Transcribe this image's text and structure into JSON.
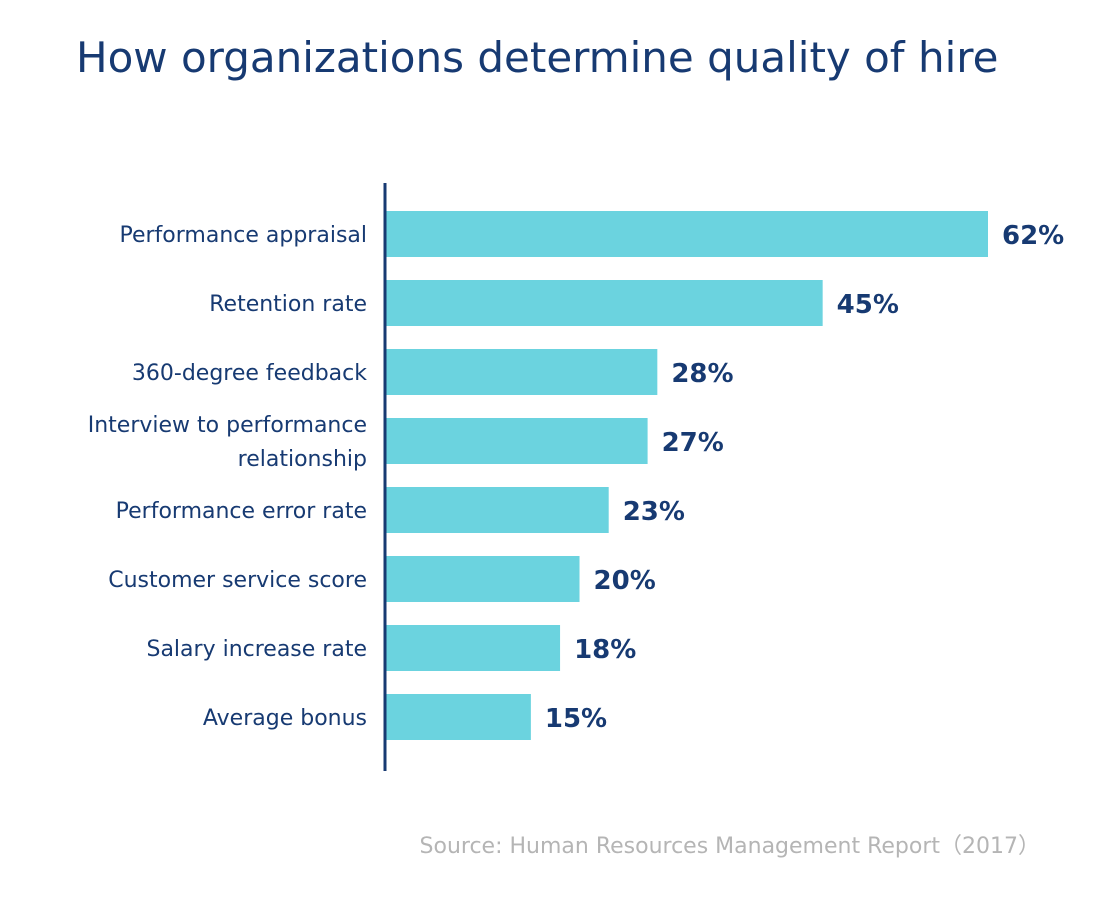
{
  "chart_data": {
    "type": "bar",
    "orientation": "horizontal",
    "title": "How organizations determine quality of hire",
    "categories": [
      "Performance appraisal",
      "Retention rate",
      "360-degree feedback",
      "Interview to performance relationship",
      "Performance error rate",
      "Customer service score",
      "Salary increase rate",
      "Average bonus"
    ],
    "category_lines": [
      [
        "Performance appraisal"
      ],
      [
        "Retention rate"
      ],
      [
        "360-degree feedback"
      ],
      [
        "Interview to performance",
        "relationship"
      ],
      [
        "Performance error rate"
      ],
      [
        "Customer service score"
      ],
      [
        "Salary increase rate"
      ],
      [
        "Average bonus"
      ]
    ],
    "values": [
      62,
      45,
      28,
      27,
      23,
      20,
      18,
      15
    ],
    "value_labels": [
      "62%",
      "45%",
      "28%",
      "27%",
      "23%",
      "20%",
      "18%",
      "15%"
    ],
    "xlim": [
      0,
      62
    ],
    "grid": false,
    "legend": "none",
    "bar_color": "#6bd3df",
    "text_color": "#173a72"
  },
  "source": "Source: Human Resources Management Report（2017）"
}
